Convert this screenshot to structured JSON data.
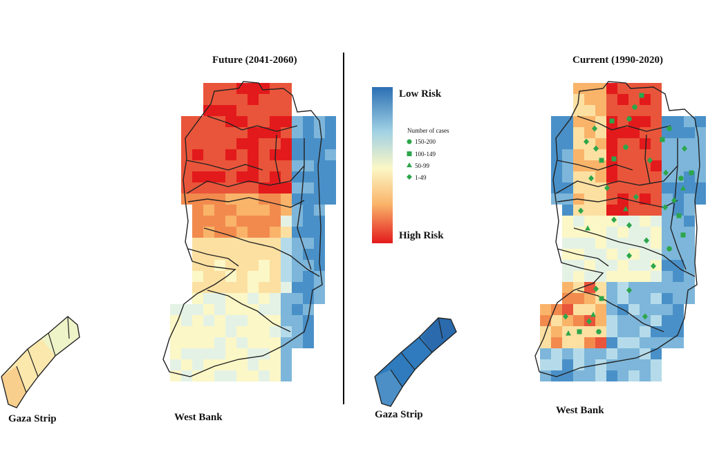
{
  "titles": {
    "future": "Future (2041-2060)",
    "current": "Current (1990-2020)"
  },
  "regions": {
    "future_gaza": "Gaza Strip",
    "future_westbank": "West Bank",
    "current_gaza": "Gaza Strip",
    "current_westbank": "West Bank"
  },
  "legend": {
    "low": "Low Risk",
    "high": "High Risk",
    "cases_title": "Number of cases",
    "cases": [
      {
        "label": "150-200",
        "shape": "circle"
      },
      {
        "label": "100-149",
        "shape": "square"
      },
      {
        "label": "50-99",
        "shape": "triangle"
      },
      {
        "label": "1-49",
        "shape": "diamond"
      }
    ],
    "colors": {
      "low": "#2b6fb3",
      "mid": "#fbf7c6",
      "high": "#e31a1c",
      "marker": "#2ca64a"
    }
  }
}
